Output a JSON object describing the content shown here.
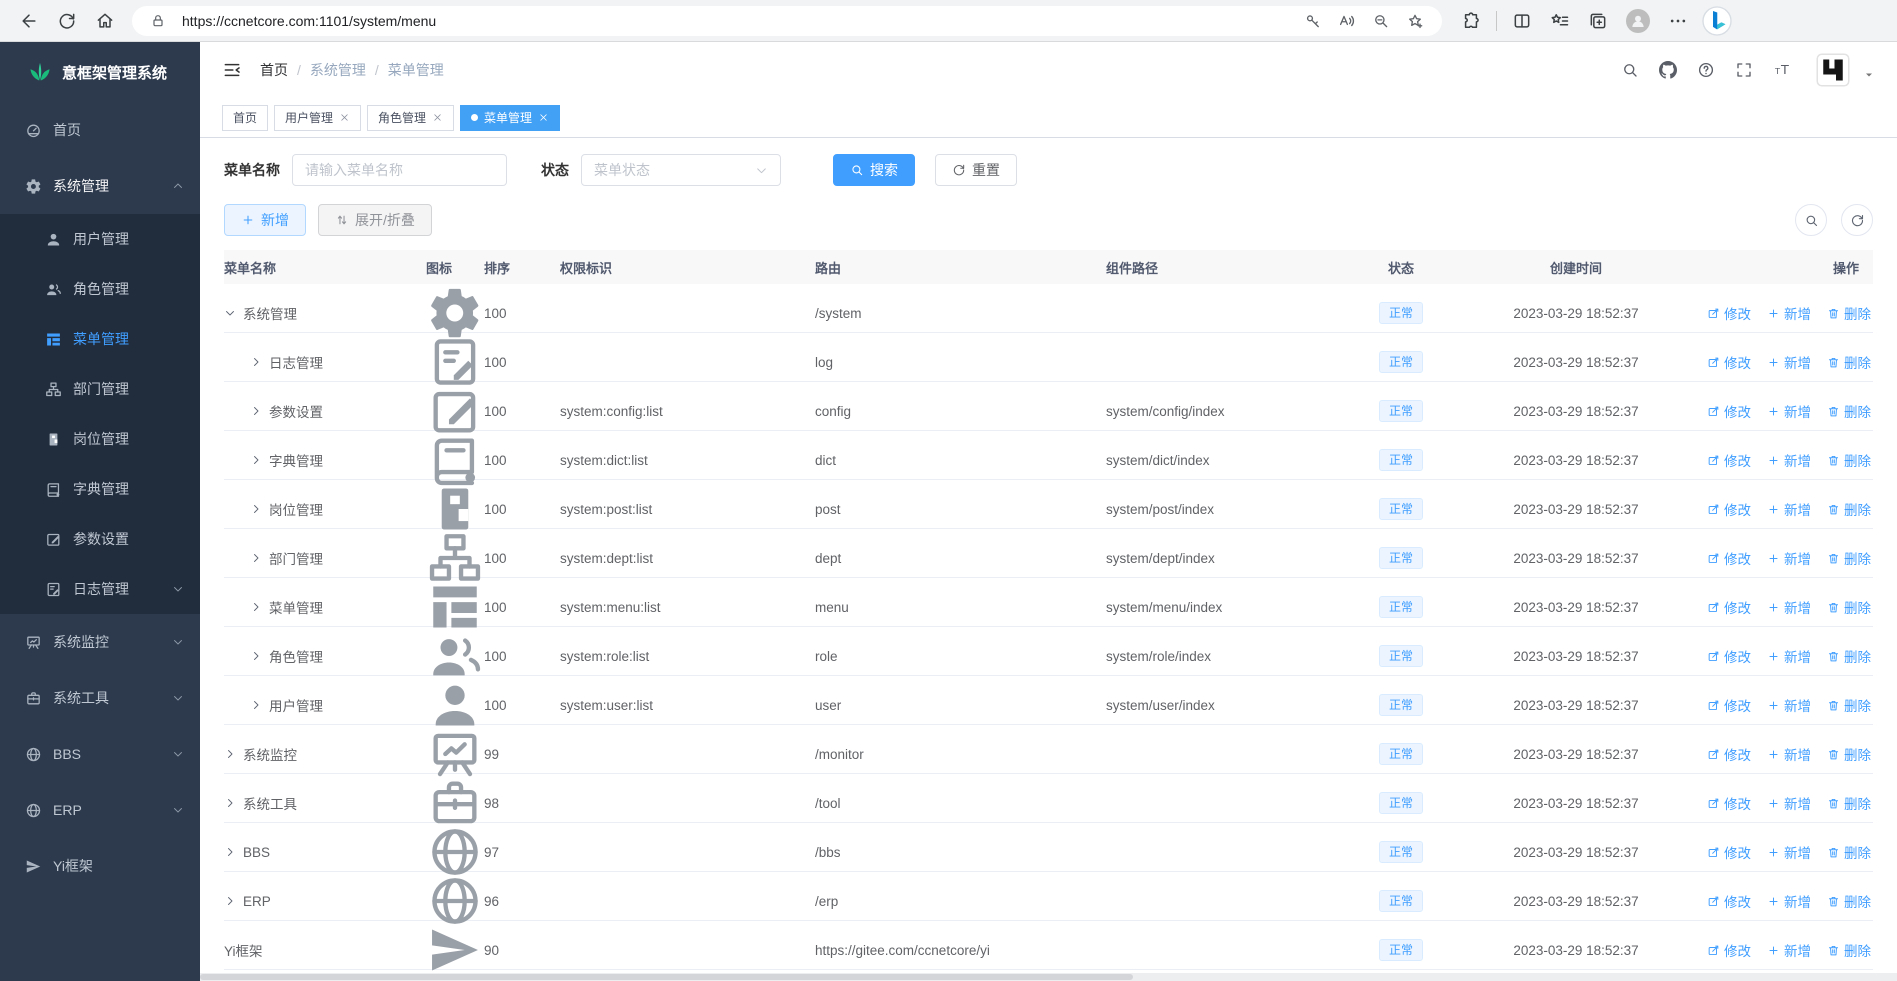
{
  "browser": {
    "url": "https://ccnetcore.com:1101/system/menu"
  },
  "sidebar": {
    "title": "意框架管理系统",
    "items": [
      {
        "label": "首页",
        "icon": "dashboard-icon",
        "level": 0,
        "active": false,
        "chevron": ""
      },
      {
        "label": "系统管理",
        "icon": "gear-icon",
        "level": 0,
        "active": false,
        "chevron": "up",
        "open": true
      },
      {
        "label": "用户管理",
        "icon": "user-icon",
        "level": 1,
        "active": false,
        "chevron": ""
      },
      {
        "label": "角色管理",
        "icon": "peoples-icon",
        "level": 1,
        "active": false,
        "chevron": ""
      },
      {
        "label": "菜单管理",
        "icon": "tree-table-icon",
        "level": 1,
        "active": true,
        "chevron": ""
      },
      {
        "label": "部门管理",
        "icon": "tree-icon",
        "level": 1,
        "active": false,
        "chevron": ""
      },
      {
        "label": "岗位管理",
        "icon": "post-icon",
        "level": 1,
        "active": false,
        "chevron": ""
      },
      {
        "label": "字典管理",
        "icon": "dict-icon",
        "level": 1,
        "active": false,
        "chevron": ""
      },
      {
        "label": "参数设置",
        "icon": "edit-icon",
        "level": 1,
        "active": false,
        "chevron": ""
      },
      {
        "label": "日志管理",
        "icon": "log-icon",
        "level": 1,
        "active": false,
        "chevron": "down"
      },
      {
        "label": "系统监控",
        "icon": "monitor-icon",
        "level": 0,
        "active": false,
        "chevron": "down"
      },
      {
        "label": "系统工具",
        "icon": "tool-icon",
        "level": 0,
        "active": false,
        "chevron": "down"
      },
      {
        "label": "BBS",
        "icon": "globe-icon",
        "level": 0,
        "active": false,
        "chevron": "down"
      },
      {
        "label": "ERP",
        "icon": "globe-icon",
        "level": 0,
        "active": false,
        "chevron": "down"
      },
      {
        "label": "Yi框架",
        "icon": "guide-icon",
        "level": 0,
        "active": false,
        "chevron": ""
      }
    ]
  },
  "breadcrumb": {
    "items": [
      "首页",
      "系统管理",
      "菜单管理"
    ],
    "separator": "/"
  },
  "tabs": [
    {
      "label": "首页",
      "active": false,
      "closable": false
    },
    {
      "label": "用户管理",
      "active": false,
      "closable": true
    },
    {
      "label": "角色管理",
      "active": false,
      "closable": true
    },
    {
      "label": "菜单管理",
      "active": true,
      "closable": true
    }
  ],
  "search": {
    "name_label": "菜单名称",
    "name_placeholder": "请输入菜单名称",
    "name_value": "",
    "status_label": "状态",
    "status_placeholder": "菜单状态",
    "search_button": "搜索",
    "reset_button": "重置"
  },
  "toolbar": {
    "add_button": "新增",
    "expand_button": "展开/折叠"
  },
  "table": {
    "columns": [
      "菜单名称",
      "图标",
      "排序",
      "权限标识",
      "路由",
      "组件路径",
      "状态",
      "创建时间",
      "操作"
    ],
    "ops": {
      "edit": "修改",
      "add": "新增",
      "delete": "删除"
    },
    "rows": [
      {
        "name": "系统管理",
        "icon": "gear-icon",
        "level": 0,
        "expand": "down",
        "order": "100",
        "perms": "",
        "path": "/system",
        "component": "",
        "status": "正常",
        "created": "2023-03-29 18:52:37"
      },
      {
        "name": "日志管理",
        "icon": "log-icon",
        "level": 1,
        "expand": "right",
        "order": "100",
        "perms": "",
        "path": "log",
        "component": "",
        "status": "正常",
        "created": "2023-03-29 18:52:37"
      },
      {
        "name": "参数设置",
        "icon": "edit-icon",
        "level": 1,
        "expand": "right",
        "order": "100",
        "perms": "system:config:list",
        "path": "config",
        "component": "system/config/index",
        "status": "正常",
        "created": "2023-03-29 18:52:37"
      },
      {
        "name": "字典管理",
        "icon": "dict-icon",
        "level": 1,
        "expand": "right",
        "order": "100",
        "perms": "system:dict:list",
        "path": "dict",
        "component": "system/dict/index",
        "status": "正常",
        "created": "2023-03-29 18:52:37"
      },
      {
        "name": "岗位管理",
        "icon": "post-icon",
        "level": 1,
        "expand": "right",
        "order": "100",
        "perms": "system:post:list",
        "path": "post",
        "component": "system/post/index",
        "status": "正常",
        "created": "2023-03-29 18:52:37"
      },
      {
        "name": "部门管理",
        "icon": "tree-icon",
        "level": 1,
        "expand": "right",
        "order": "100",
        "perms": "system:dept:list",
        "path": "dept",
        "component": "system/dept/index",
        "status": "正常",
        "created": "2023-03-29 18:52:37"
      },
      {
        "name": "菜单管理",
        "icon": "tree-table-icon",
        "level": 1,
        "expand": "right",
        "order": "100",
        "perms": "system:menu:list",
        "path": "menu",
        "component": "system/menu/index",
        "status": "正常",
        "created": "2023-03-29 18:52:37"
      },
      {
        "name": "角色管理",
        "icon": "peoples-icon",
        "level": 1,
        "expand": "right",
        "order": "100",
        "perms": "system:role:list",
        "path": "role",
        "component": "system/role/index",
        "status": "正常",
        "created": "2023-03-29 18:52:37"
      },
      {
        "name": "用户管理",
        "icon": "user-icon",
        "level": 1,
        "expand": "right",
        "order": "100",
        "perms": "system:user:list",
        "path": "user",
        "component": "system/user/index",
        "status": "正常",
        "created": "2023-03-29 18:52:37"
      },
      {
        "name": "系统监控",
        "icon": "monitor-icon",
        "level": 0,
        "expand": "right",
        "order": "99",
        "perms": "",
        "path": "/monitor",
        "component": "",
        "status": "正常",
        "created": "2023-03-29 18:52:37"
      },
      {
        "name": "系统工具",
        "icon": "tool-icon",
        "level": 0,
        "expand": "right",
        "order": "98",
        "perms": "",
        "path": "/tool",
        "component": "",
        "status": "正常",
        "created": "2023-03-29 18:52:37"
      },
      {
        "name": "BBS",
        "icon": "globe-icon",
        "level": 0,
        "expand": "right",
        "order": "97",
        "perms": "",
        "path": "/bbs",
        "component": "",
        "status": "正常",
        "created": "2023-03-29 18:52:37"
      },
      {
        "name": "ERP",
        "icon": "globe-icon",
        "level": 0,
        "expand": "right",
        "order": "96",
        "perms": "",
        "path": "/erp",
        "component": "",
        "status": "正常",
        "created": "2023-03-29 18:52:37"
      },
      {
        "name": "Yi框架",
        "icon": "guide-icon",
        "level": 0,
        "expand": "none",
        "order": "90",
        "perms": "",
        "path": "https://gitee.com/ccnetcore/yi",
        "component": "",
        "status": "正常",
        "created": "2023-03-29 18:52:37"
      }
    ]
  },
  "colors": {
    "accent": "#409eff",
    "sidebar_bg": "#2d3a4e",
    "submenu_bg": "#212c3d",
    "status_badge_bg": "#ecf5ff",
    "status_badge_border": "#d9ecff",
    "logo_green": "#1abc7b",
    "tab_active_bg": "#42a0f5"
  }
}
